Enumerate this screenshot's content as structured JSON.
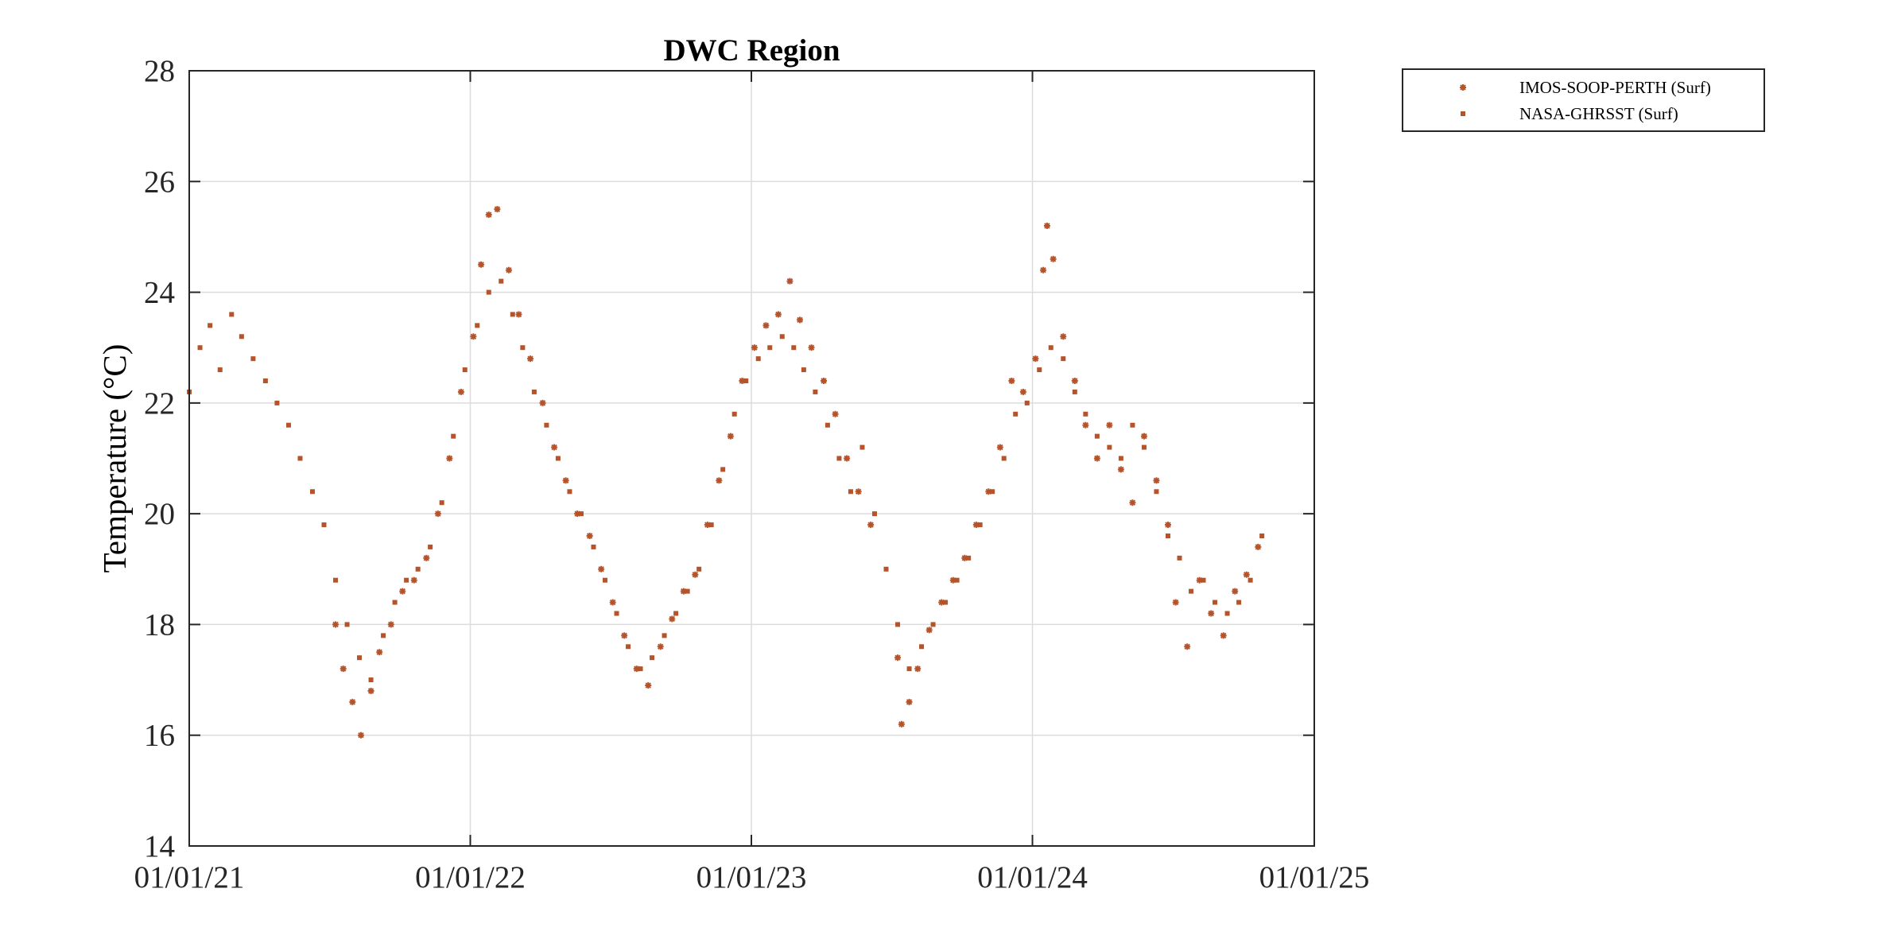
{
  "chart_data": {
    "type": "scatter",
    "title": "DWC Region",
    "xlabel": "",
    "ylabel": "Temperature (°C)",
    "x_axis_type": "date",
    "xlim": [
      "2021-01-01",
      "2025-01-01"
    ],
    "ylim": [
      14,
      28
    ],
    "x_ticks": [
      "2021-01-01",
      "2022-01-01",
      "2023-01-01",
      "2024-01-01",
      "2025-01-01"
    ],
    "x_tick_labels": [
      "01/01/21",
      "01/01/22",
      "01/01/23",
      "01/01/24",
      "01/01/25"
    ],
    "y_ticks": [
      14,
      16,
      18,
      20,
      22,
      24,
      26,
      28
    ],
    "grid": true,
    "legend_position": "outside-top-right",
    "series": [
      {
        "name": "IMOS-SOOP-PERTH (Surf)",
        "marker": "asterisk",
        "color": "#B5532A",
        "points": [
          [
            "2021-07-10",
            18.0
          ],
          [
            "2021-07-20",
            17.2
          ],
          [
            "2021-08-01",
            16.6
          ],
          [
            "2021-08-12",
            16.0
          ],
          [
            "2021-08-25",
            16.8
          ],
          [
            "2021-09-05",
            17.5
          ],
          [
            "2021-09-20",
            18.0
          ],
          [
            "2021-10-05",
            18.6
          ],
          [
            "2021-10-20",
            18.8
          ],
          [
            "2021-11-05",
            19.2
          ],
          [
            "2021-11-20",
            20.0
          ],
          [
            "2021-12-05",
            21.0
          ],
          [
            "2021-12-20",
            22.2
          ],
          [
            "2022-01-05",
            23.2
          ],
          [
            "2022-01-15",
            24.5
          ],
          [
            "2022-01-25",
            25.4
          ],
          [
            "2022-02-05",
            25.5
          ],
          [
            "2022-02-20",
            24.4
          ],
          [
            "2022-03-05",
            23.6
          ],
          [
            "2022-03-20",
            22.8
          ],
          [
            "2022-04-05",
            22.0
          ],
          [
            "2022-04-20",
            21.2
          ],
          [
            "2022-05-05",
            20.6
          ],
          [
            "2022-05-20",
            20.0
          ],
          [
            "2022-06-05",
            19.6
          ],
          [
            "2022-06-20",
            19.0
          ],
          [
            "2022-07-05",
            18.4
          ],
          [
            "2022-07-20",
            17.8
          ],
          [
            "2022-08-05",
            17.2
          ],
          [
            "2022-08-20",
            16.9
          ],
          [
            "2022-09-05",
            17.6
          ],
          [
            "2022-09-20",
            18.1
          ],
          [
            "2022-10-05",
            18.6
          ],
          [
            "2022-10-20",
            18.9
          ],
          [
            "2022-11-05",
            19.8
          ],
          [
            "2022-11-20",
            20.6
          ],
          [
            "2022-12-05",
            21.4
          ],
          [
            "2022-12-20",
            22.4
          ],
          [
            "2023-01-05",
            23.0
          ],
          [
            "2023-01-20",
            23.4
          ],
          [
            "2023-02-05",
            23.6
          ],
          [
            "2023-02-20",
            24.2
          ],
          [
            "2023-03-05",
            23.5
          ],
          [
            "2023-03-20",
            23.0
          ],
          [
            "2023-04-05",
            22.4
          ],
          [
            "2023-04-20",
            21.8
          ],
          [
            "2023-05-05",
            21.0
          ],
          [
            "2023-05-20",
            20.4
          ],
          [
            "2023-06-05",
            19.8
          ],
          [
            "2023-07-10",
            17.4
          ],
          [
            "2023-07-15",
            16.2
          ],
          [
            "2023-07-25",
            16.6
          ],
          [
            "2023-08-05",
            17.2
          ],
          [
            "2023-08-20",
            17.9
          ],
          [
            "2023-09-05",
            18.4
          ],
          [
            "2023-09-20",
            18.8
          ],
          [
            "2023-10-05",
            19.2
          ],
          [
            "2023-10-20",
            19.8
          ],
          [
            "2023-11-05",
            20.4
          ],
          [
            "2023-11-20",
            21.2
          ],
          [
            "2023-12-05",
            22.4
          ],
          [
            "2023-12-20",
            22.2
          ],
          [
            "2024-01-05",
            22.8
          ],
          [
            "2024-01-15",
            24.4
          ],
          [
            "2024-01-20",
            25.2
          ],
          [
            "2024-01-28",
            24.6
          ],
          [
            "2024-02-10",
            23.2
          ],
          [
            "2024-02-25",
            22.4
          ],
          [
            "2024-03-10",
            21.6
          ],
          [
            "2024-03-25",
            21.0
          ],
          [
            "2024-04-10",
            21.6
          ],
          [
            "2024-04-25",
            20.8
          ],
          [
            "2024-05-10",
            20.2
          ],
          [
            "2024-05-25",
            21.4
          ],
          [
            "2024-06-10",
            20.6
          ],
          [
            "2024-06-25",
            19.8
          ],
          [
            "2024-07-05",
            18.4
          ],
          [
            "2024-07-20",
            17.6
          ],
          [
            "2024-08-05",
            18.8
          ],
          [
            "2024-08-20",
            18.2
          ],
          [
            "2024-09-05",
            17.8
          ],
          [
            "2024-09-20",
            18.6
          ],
          [
            "2024-10-05",
            18.9
          ],
          [
            "2024-10-20",
            19.4
          ]
        ]
      },
      {
        "name": "NASA-GHRSST (Surf)",
        "marker": "square",
        "color": "#B5532A",
        "points": [
          [
            "2021-01-01",
            22.2
          ],
          [
            "2021-01-15",
            23.0
          ],
          [
            "2021-01-28",
            23.4
          ],
          [
            "2021-02-10",
            22.6
          ],
          [
            "2021-02-25",
            23.6
          ],
          [
            "2021-03-10",
            23.2
          ],
          [
            "2021-03-25",
            22.8
          ],
          [
            "2021-04-10",
            22.4
          ],
          [
            "2021-04-25",
            22.0
          ],
          [
            "2021-05-10",
            21.6
          ],
          [
            "2021-05-25",
            21.0
          ],
          [
            "2021-06-10",
            20.4
          ],
          [
            "2021-06-25",
            19.8
          ],
          [
            "2021-07-10",
            18.8
          ],
          [
            "2021-07-25",
            18.0
          ],
          [
            "2021-08-10",
            17.4
          ],
          [
            "2021-08-25",
            17.0
          ],
          [
            "2021-09-10",
            17.8
          ],
          [
            "2021-09-25",
            18.4
          ],
          [
            "2021-10-10",
            18.8
          ],
          [
            "2021-10-25",
            19.0
          ],
          [
            "2021-11-10",
            19.4
          ],
          [
            "2021-11-25",
            20.2
          ],
          [
            "2021-12-10",
            21.4
          ],
          [
            "2021-12-25",
            22.6
          ],
          [
            "2022-01-10",
            23.4
          ],
          [
            "2022-01-25",
            24.0
          ],
          [
            "2022-02-10",
            24.2
          ],
          [
            "2022-02-25",
            23.6
          ],
          [
            "2022-03-10",
            23.0
          ],
          [
            "2022-03-25",
            22.2
          ],
          [
            "2022-04-10",
            21.6
          ],
          [
            "2022-04-25",
            21.0
          ],
          [
            "2022-05-10",
            20.4
          ],
          [
            "2022-05-25",
            20.0
          ],
          [
            "2022-06-10",
            19.4
          ],
          [
            "2022-06-25",
            18.8
          ],
          [
            "2022-07-10",
            18.2
          ],
          [
            "2022-07-25",
            17.6
          ],
          [
            "2022-08-10",
            17.2
          ],
          [
            "2022-08-25",
            17.4
          ],
          [
            "2022-09-10",
            17.8
          ],
          [
            "2022-09-25",
            18.2
          ],
          [
            "2022-10-10",
            18.6
          ],
          [
            "2022-10-25",
            19.0
          ],
          [
            "2022-11-10",
            19.8
          ],
          [
            "2022-11-25",
            20.8
          ],
          [
            "2022-12-10",
            21.8
          ],
          [
            "2022-12-25",
            22.4
          ],
          [
            "2023-01-10",
            22.8
          ],
          [
            "2023-01-25",
            23.0
          ],
          [
            "2023-02-10",
            23.2
          ],
          [
            "2023-02-25",
            23.0
          ],
          [
            "2023-03-10",
            22.6
          ],
          [
            "2023-03-25",
            22.2
          ],
          [
            "2023-04-10",
            21.6
          ],
          [
            "2023-04-25",
            21.0
          ],
          [
            "2023-05-10",
            20.4
          ],
          [
            "2023-05-25",
            21.2
          ],
          [
            "2023-06-10",
            20.0
          ],
          [
            "2023-06-25",
            19.0
          ],
          [
            "2023-07-10",
            18.0
          ],
          [
            "2023-07-25",
            17.2
          ],
          [
            "2023-08-10",
            17.6
          ],
          [
            "2023-08-25",
            18.0
          ],
          [
            "2023-09-10",
            18.4
          ],
          [
            "2023-09-25",
            18.8
          ],
          [
            "2023-10-10",
            19.2
          ],
          [
            "2023-10-25",
            19.8
          ],
          [
            "2023-11-10",
            20.4
          ],
          [
            "2023-11-25",
            21.0
          ],
          [
            "2023-12-10",
            21.8
          ],
          [
            "2023-12-25",
            22.0
          ],
          [
            "2024-01-10",
            22.6
          ],
          [
            "2024-01-25",
            23.0
          ],
          [
            "2024-02-10",
            22.8
          ],
          [
            "2024-02-25",
            22.2
          ],
          [
            "2024-03-10",
            21.8
          ],
          [
            "2024-03-25",
            21.4
          ],
          [
            "2024-04-10",
            21.2
          ],
          [
            "2024-04-25",
            21.0
          ],
          [
            "2024-05-10",
            21.6
          ],
          [
            "2024-05-25",
            21.2
          ],
          [
            "2024-06-10",
            20.4
          ],
          [
            "2024-06-25",
            19.6
          ],
          [
            "2024-07-10",
            19.2
          ],
          [
            "2024-07-25",
            18.6
          ],
          [
            "2024-08-10",
            18.8
          ],
          [
            "2024-08-25",
            18.4
          ],
          [
            "2024-09-10",
            18.2
          ],
          [
            "2024-09-25",
            18.4
          ],
          [
            "2024-10-10",
            18.8
          ],
          [
            "2024-10-25",
            19.6
          ]
        ]
      }
    ]
  }
}
